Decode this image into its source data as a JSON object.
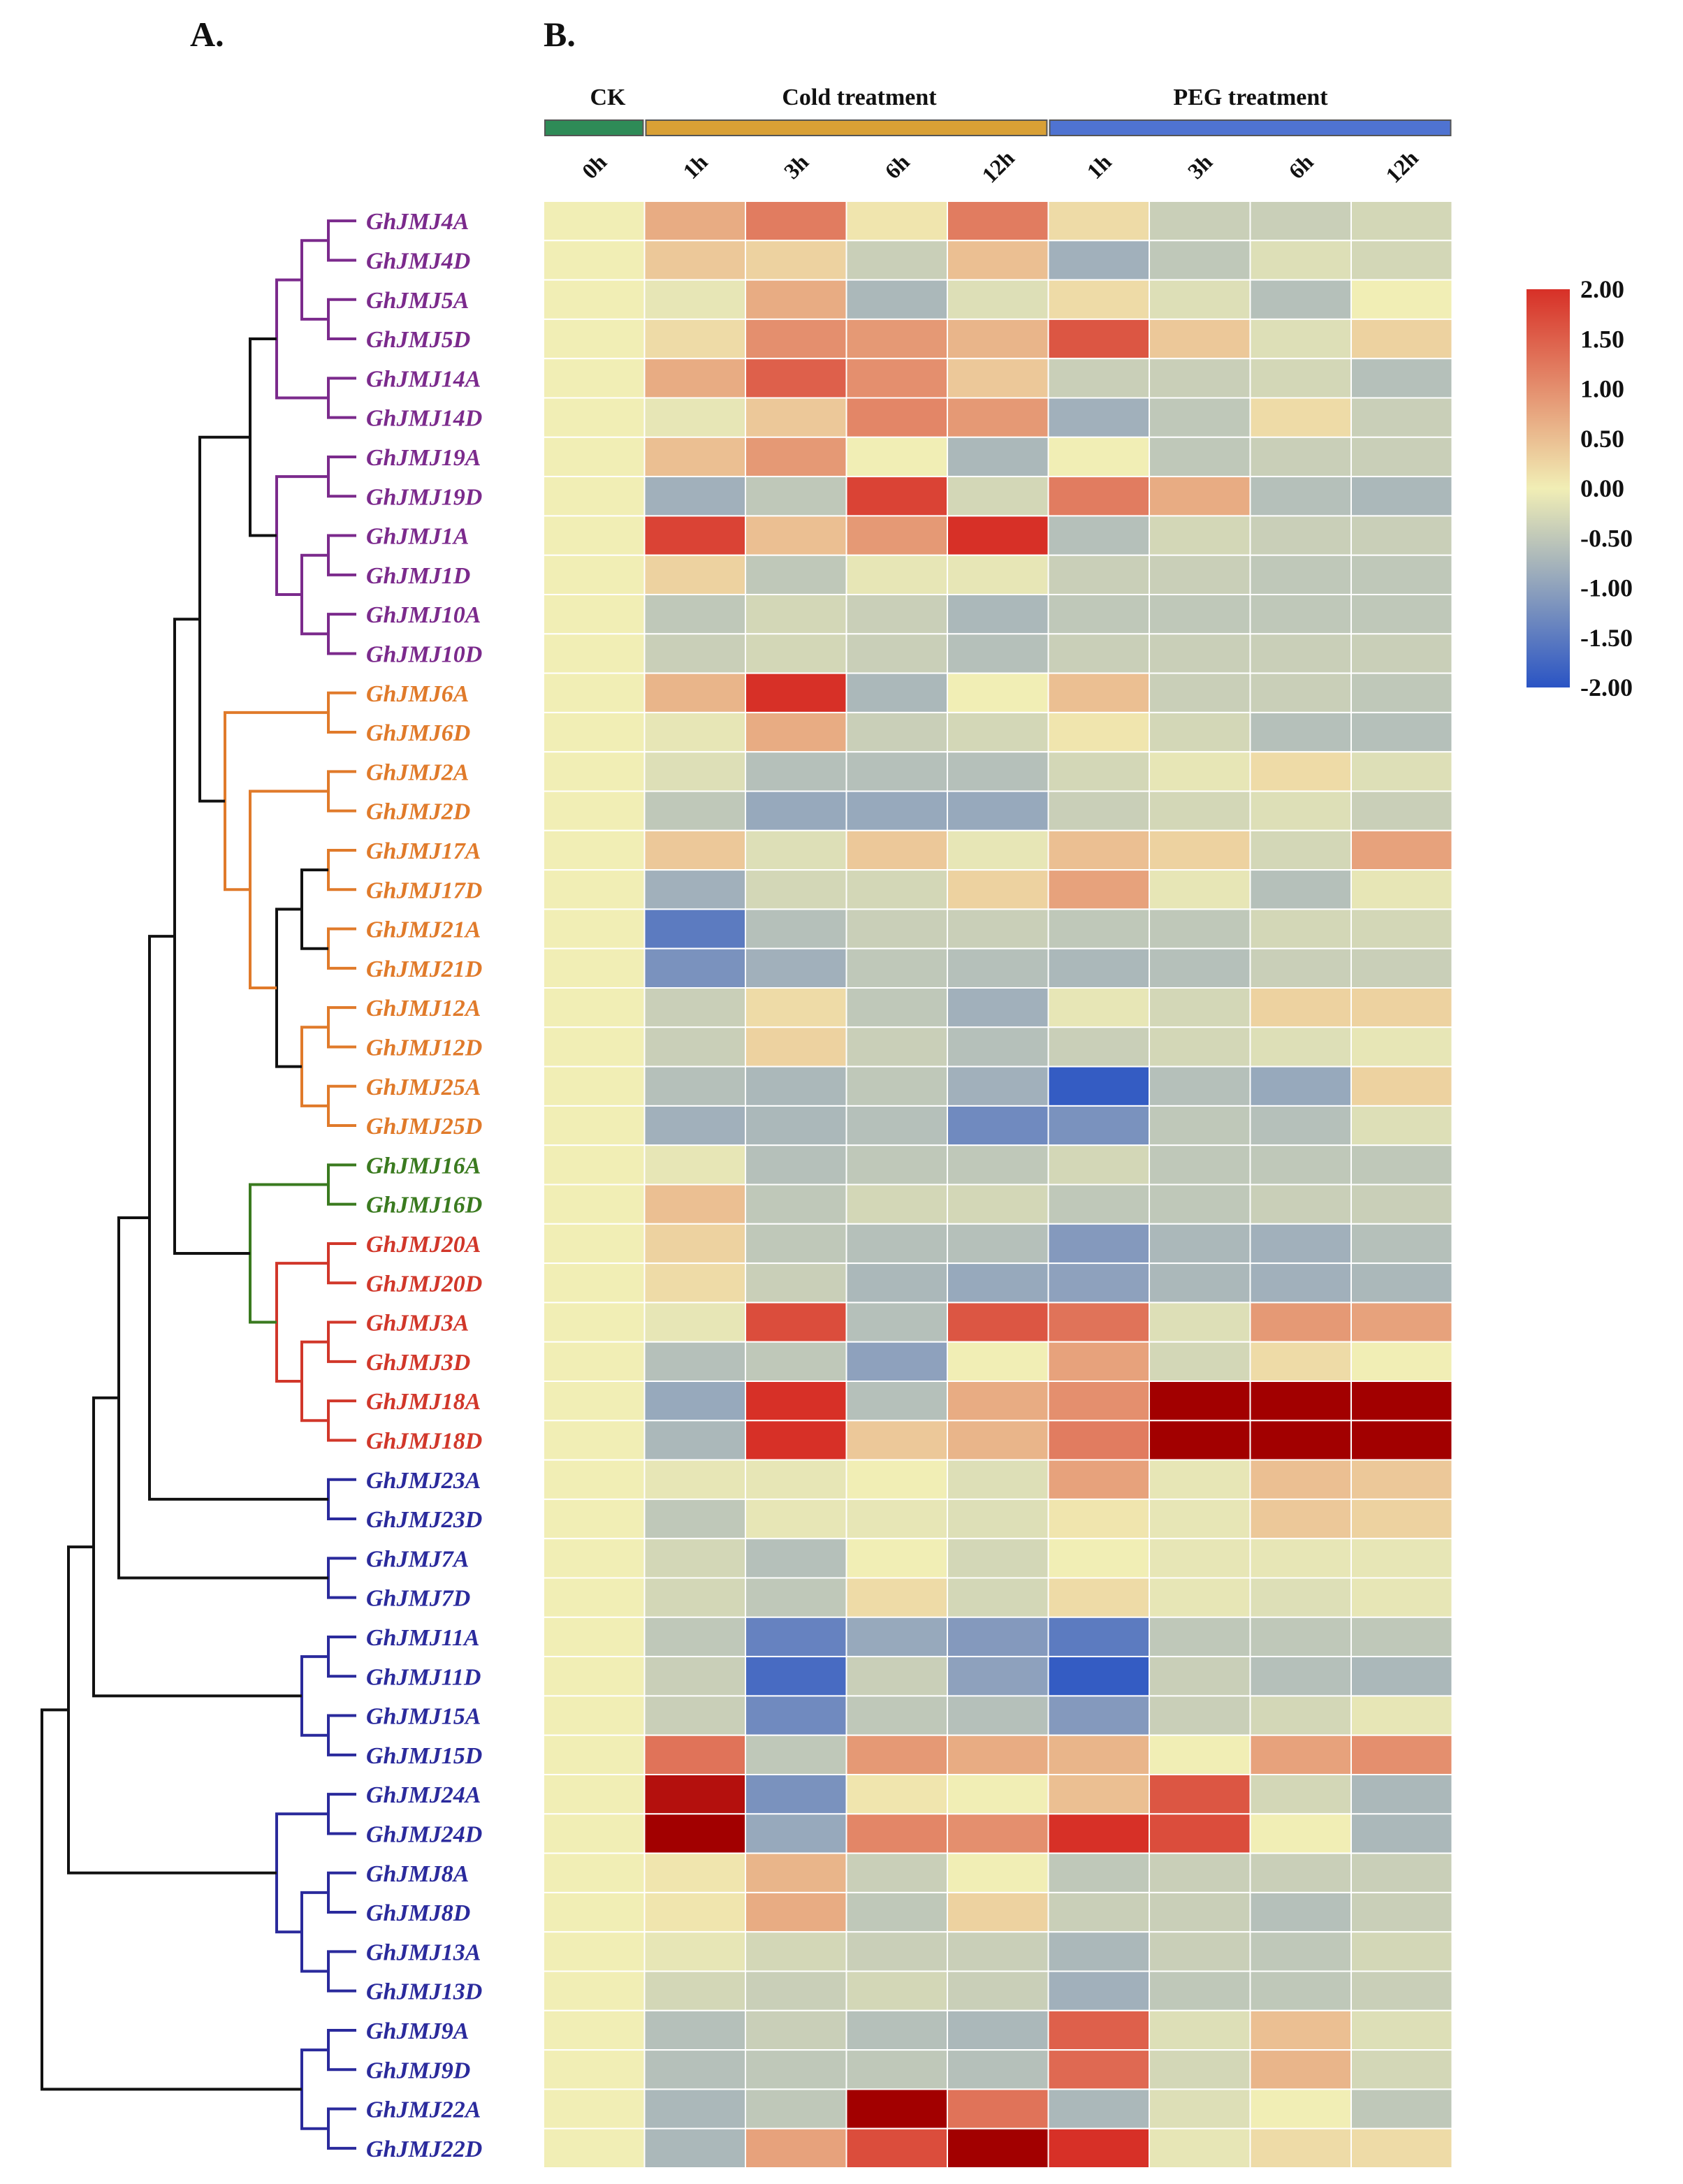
{
  "panels": {
    "left": "A.",
    "right": "B."
  },
  "chart_data": {
    "type": "heatmap",
    "groups": [
      {
        "label": "CK",
        "color": "#2e8b57",
        "span": [
          0,
          0
        ]
      },
      {
        "label": "Cold treatment",
        "color": "#d9a035",
        "span": [
          1,
          4
        ]
      },
      {
        "label": "PEG treatment",
        "color": "#4f73d1",
        "span": [
          5,
          8
        ]
      }
    ],
    "columns": [
      "0h",
      "1h",
      "3h",
      "6h",
      "12h",
      "1h",
      "3h",
      "6h",
      "12h"
    ],
    "clade_colors": {
      "purple": "#7b2a8c",
      "orange": "#e07a2a",
      "green": "#3a7a1f",
      "red": "#d1372a",
      "blue": "#2a2a9c",
      "black": "#111111"
    },
    "rows": [
      {
        "gene": "GhJMJ4A",
        "clade": "purple"
      },
      {
        "gene": "GhJMJ4D",
        "clade": "purple"
      },
      {
        "gene": "GhJMJ5A",
        "clade": "purple"
      },
      {
        "gene": "GhJMJ5D",
        "clade": "purple"
      },
      {
        "gene": "GhJMJ14A",
        "clade": "purple"
      },
      {
        "gene": "GhJMJ14D",
        "clade": "purple"
      },
      {
        "gene": "GhJMJ19A",
        "clade": "purple"
      },
      {
        "gene": "GhJMJ19D",
        "clade": "purple"
      },
      {
        "gene": "GhJMJ1A",
        "clade": "purple"
      },
      {
        "gene": "GhJMJ1D",
        "clade": "purple"
      },
      {
        "gene": "GhJMJ10A",
        "clade": "purple"
      },
      {
        "gene": "GhJMJ10D",
        "clade": "purple"
      },
      {
        "gene": "GhJMJ6A",
        "clade": "orange"
      },
      {
        "gene": "GhJMJ6D",
        "clade": "orange"
      },
      {
        "gene": "GhJMJ2A",
        "clade": "orange"
      },
      {
        "gene": "GhJMJ2D",
        "clade": "orange"
      },
      {
        "gene": "GhJMJ17A",
        "clade": "orange"
      },
      {
        "gene": "GhJMJ17D",
        "clade": "orange"
      },
      {
        "gene": "GhJMJ21A",
        "clade": "orange"
      },
      {
        "gene": "GhJMJ21D",
        "clade": "orange"
      },
      {
        "gene": "GhJMJ12A",
        "clade": "orange"
      },
      {
        "gene": "GhJMJ12D",
        "clade": "orange"
      },
      {
        "gene": "GhJMJ25A",
        "clade": "orange"
      },
      {
        "gene": "GhJMJ25D",
        "clade": "orange"
      },
      {
        "gene": "GhJMJ16A",
        "clade": "green"
      },
      {
        "gene": "GhJMJ16D",
        "clade": "green"
      },
      {
        "gene": "GhJMJ20A",
        "clade": "red"
      },
      {
        "gene": "GhJMJ20D",
        "clade": "red"
      },
      {
        "gene": "GhJMJ3A",
        "clade": "red"
      },
      {
        "gene": "GhJMJ3D",
        "clade": "red"
      },
      {
        "gene": "GhJMJ18A",
        "clade": "red"
      },
      {
        "gene": "GhJMJ18D",
        "clade": "red"
      },
      {
        "gene": "GhJMJ23A",
        "clade": "blue"
      },
      {
        "gene": "GhJMJ23D",
        "clade": "blue"
      },
      {
        "gene": "GhJMJ7A",
        "clade": "blue"
      },
      {
        "gene": "GhJMJ7D",
        "clade": "blue"
      },
      {
        "gene": "GhJMJ11A",
        "clade": "blue"
      },
      {
        "gene": "GhJMJ11D",
        "clade": "blue"
      },
      {
        "gene": "GhJMJ15A",
        "clade": "blue"
      },
      {
        "gene": "GhJMJ15D",
        "clade": "blue"
      },
      {
        "gene": "GhJMJ24A",
        "clade": "blue"
      },
      {
        "gene": "GhJMJ24D",
        "clade": "blue"
      },
      {
        "gene": "GhJMJ8A",
        "clade": "blue"
      },
      {
        "gene": "GhJMJ8D",
        "clade": "blue"
      },
      {
        "gene": "GhJMJ13A",
        "clade": "blue"
      },
      {
        "gene": "GhJMJ13D",
        "clade": "blue"
      },
      {
        "gene": "GhJMJ9A",
        "clade": "blue"
      },
      {
        "gene": "GhJMJ9D",
        "clade": "blue"
      },
      {
        "gene": "GhJMJ22A",
        "clade": "blue"
      },
      {
        "gene": "GhJMJ22D",
        "clade": "blue"
      }
    ],
    "values": [
      [
        0,
        0.7,
        1.2,
        0.1,
        1.2,
        0.2,
        -0.4,
        -0.4,
        -0.3
      ],
      [
        0,
        0.4,
        0.3,
        -0.4,
        0.5,
        -0.8,
        -0.5,
        -0.2,
        -0.3
      ],
      [
        0,
        -0.1,
        0.7,
        -0.7,
        -0.2,
        0.2,
        -0.2,
        -0.6,
        0.0
      ],
      [
        0,
        0.2,
        1.0,
        0.9,
        0.6,
        1.6,
        0.4,
        -0.2,
        0.3
      ],
      [
        0,
        0.7,
        1.5,
        1.0,
        0.4,
        -0.4,
        -0.4,
        -0.3,
        -0.6
      ],
      [
        0,
        -0.1,
        0.4,
        1.1,
        0.9,
        -0.8,
        -0.5,
        0.2,
        -0.4
      ],
      [
        0,
        0.5,
        0.9,
        0.0,
        -0.7,
        0.0,
        -0.5,
        -0.4,
        -0.4
      ],
      [
        0,
        -0.8,
        -0.5,
        1.8,
        -0.3,
        1.2,
        0.7,
        -0.6,
        -0.7
      ],
      [
        0,
        1.8,
        0.5,
        0.9,
        2.0,
        -0.6,
        -0.3,
        -0.4,
        -0.4
      ],
      [
        0,
        0.3,
        -0.5,
        -0.1,
        -0.1,
        -0.4,
        -0.4,
        -0.5,
        -0.5
      ],
      [
        0,
        -0.5,
        -0.3,
        -0.4,
        -0.7,
        -0.5,
        -0.5,
        -0.5,
        -0.5
      ],
      [
        0,
        -0.4,
        -0.3,
        -0.4,
        -0.6,
        -0.4,
        -0.4,
        -0.4,
        -0.4
      ],
      [
        0,
        0.6,
        2.0,
        -0.7,
        0.0,
        0.5,
        -0.4,
        -0.4,
        -0.5
      ],
      [
        0,
        -0.1,
        0.7,
        -0.4,
        -0.3,
        0.1,
        -0.3,
        -0.6,
        -0.6
      ],
      [
        0,
        -0.2,
        -0.6,
        -0.6,
        -0.6,
        -0.3,
        -0.1,
        0.2,
        -0.2
      ],
      [
        0,
        -0.5,
        -0.9,
        -0.9,
        -0.9,
        -0.4,
        -0.3,
        -0.2,
        -0.4
      ],
      [
        0,
        0.4,
        -0.2,
        0.4,
        -0.1,
        0.5,
        0.3,
        -0.3,
        0.8
      ],
      [
        0,
        -0.8,
        -0.3,
        -0.3,
        0.3,
        0.8,
        -0.1,
        -0.6,
        -0.1
      ],
      [
        0,
        -1.5,
        -0.6,
        -0.4,
        -0.4,
        -0.5,
        -0.5,
        -0.3,
        -0.3
      ],
      [
        0,
        -1.2,
        -0.8,
        -0.5,
        -0.6,
        -0.7,
        -0.6,
        -0.4,
        -0.4
      ],
      [
        0,
        -0.4,
        0.2,
        -0.5,
        -0.8,
        -0.1,
        -0.3,
        0.3,
        0.3
      ],
      [
        0,
        -0.4,
        0.3,
        -0.4,
        -0.6,
        -0.4,
        -0.3,
        -0.2,
        -0.1
      ],
      [
        0,
        -0.6,
        -0.7,
        -0.5,
        -0.8,
        -1.9,
        -0.6,
        -0.9,
        0.3
      ],
      [
        0,
        -0.8,
        -0.7,
        -0.6,
        -1.3,
        -1.2,
        -0.5,
        -0.6,
        -0.2
      ],
      [
        0,
        -0.1,
        -0.6,
        -0.5,
        -0.5,
        -0.3,
        -0.5,
        -0.5,
        -0.5
      ],
      [
        0,
        0.5,
        -0.5,
        -0.3,
        -0.3,
        -0.5,
        -0.5,
        -0.4,
        -0.4
      ],
      [
        0,
        0.3,
        -0.5,
        -0.6,
        -0.6,
        -1.1,
        -0.7,
        -0.8,
        -0.6
      ],
      [
        0,
        0.2,
        -0.4,
        -0.7,
        -0.9,
        -1.0,
        -0.7,
        -0.8,
        -0.7
      ],
      [
        0,
        -0.1,
        1.7,
        -0.6,
        1.6,
        1.3,
        -0.2,
        0.9,
        0.8
      ],
      [
        0,
        -0.6,
        -0.5,
        -1.0,
        0.0,
        0.8,
        -0.3,
        0.2,
        0.0
      ],
      [
        0,
        -0.9,
        2.0,
        -0.6,
        0.7,
        1.0,
        2.6,
        2.6,
        2.6
      ],
      [
        0,
        -0.7,
        2.0,
        0.4,
        0.6,
        1.2,
        2.6,
        2.6,
        2.6
      ],
      [
        0,
        -0.1,
        -0.1,
        0.0,
        -0.2,
        0.8,
        -0.1,
        0.5,
        0.4
      ],
      [
        0,
        -0.5,
        -0.1,
        -0.1,
        -0.2,
        0.1,
        -0.1,
        0.4,
        0.3
      ],
      [
        0,
        -0.3,
        -0.6,
        0.0,
        -0.3,
        0.0,
        -0.1,
        -0.1,
        -0.1
      ],
      [
        0,
        -0.3,
        -0.5,
        0.2,
        -0.3,
        0.2,
        -0.1,
        -0.2,
        -0.1
      ],
      [
        0,
        -0.5,
        -1.4,
        -0.9,
        -1.1,
        -1.5,
        -0.5,
        -0.5,
        -0.5
      ],
      [
        0,
        -0.4,
        -1.7,
        -0.4,
        -1.0,
        -1.9,
        -0.4,
        -0.6,
        -0.7
      ],
      [
        0,
        -0.4,
        -1.3,
        -0.5,
        -0.6,
        -1.1,
        -0.4,
        -0.3,
        -0.1
      ],
      [
        0,
        1.3,
        -0.5,
        0.9,
        0.7,
        0.6,
        0.0,
        0.8,
        1.0
      ],
      [
        0,
        2.4,
        -1.2,
        0.1,
        0.0,
        0.5,
        1.6,
        -0.3,
        -0.7
      ],
      [
        0,
        2.6,
        -0.9,
        1.1,
        1.0,
        2.0,
        1.7,
        0.0,
        -0.7
      ],
      [
        0,
        0.1,
        0.6,
        -0.4,
        0.0,
        -0.5,
        -0.4,
        -0.4,
        -0.4
      ],
      [
        0,
        0.1,
        0.7,
        -0.5,
        0.3,
        -0.4,
        -0.4,
        -0.6,
        -0.4
      ],
      [
        0,
        -0.1,
        -0.3,
        -0.4,
        -0.4,
        -0.7,
        -0.4,
        -0.5,
        -0.3
      ],
      [
        0,
        -0.3,
        -0.4,
        -0.3,
        -0.4,
        -0.8,
        -0.5,
        -0.5,
        -0.4
      ],
      [
        0,
        -0.6,
        -0.4,
        -0.6,
        -0.7,
        1.5,
        -0.2,
        0.5,
        -0.2
      ],
      [
        0,
        -0.6,
        -0.5,
        -0.5,
        -0.6,
        1.4,
        -0.3,
        0.6,
        -0.3
      ],
      [
        0,
        -0.7,
        -0.5,
        2.6,
        1.3,
        -0.7,
        -0.2,
        0.0,
        -0.5
      ],
      [
        0,
        -0.7,
        0.8,
        1.7,
        2.6,
        2.0,
        -0.1,
        0.2,
        0.2
      ]
    ],
    "scale": {
      "min": -2.0,
      "max": 2.0,
      "ticks": [
        "2.00",
        "1.50",
        "1.00",
        "0.50",
        "0.00",
        "-0.50",
        "-1.00",
        "-1.50",
        "-2.00"
      ],
      "low_color": "#2a54c4",
      "mid_color": "#f1eeb5",
      "high_color": "#d73027",
      "sat_color": "#a20000"
    }
  }
}
